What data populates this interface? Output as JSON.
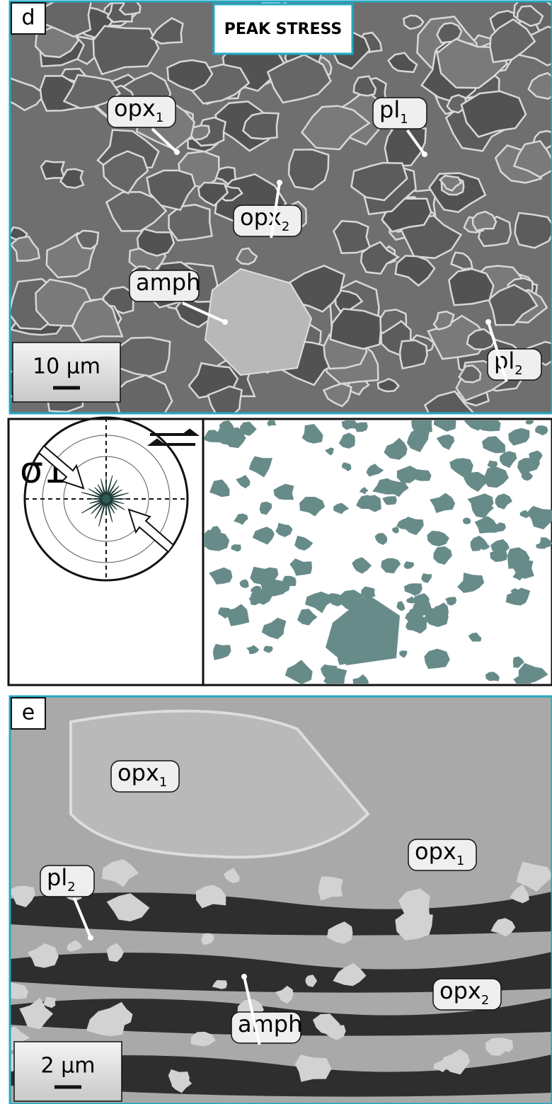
{
  "panel_d": {
    "letter": "d",
    "title": "PEAK STRESS",
    "scale_bar": "10 µm",
    "labels": [
      {
        "text": "opx",
        "sub": "1"
      },
      {
        "text": "pl",
        "sub": "1"
      },
      {
        "text": "opx",
        "sub": "2"
      },
      {
        "text": "amph"
      },
      {
        "text": "pl",
        "sub": "2"
      }
    ]
  },
  "panel_middle": {
    "stress_label": "σ1"
  },
  "panel_e": {
    "letter": "e",
    "scale_bar": "2 µm",
    "labels": [
      {
        "text": "opx",
        "sub": "1"
      },
      {
        "text": "opx",
        "sub": "1"
      },
      {
        "text": "pl",
        "sub": "2"
      },
      {
        "text": "amph"
      },
      {
        "text": "opx",
        "sub": "2"
      }
    ]
  }
}
